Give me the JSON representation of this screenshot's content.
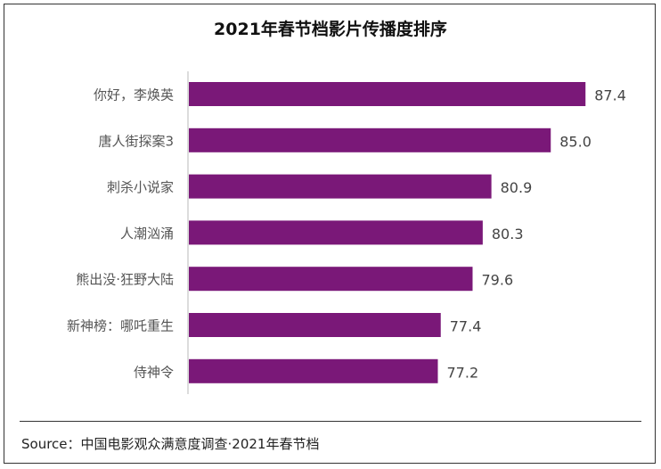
{
  "chart_data": {
    "type": "bar",
    "orientation": "horizontal",
    "title": "2021年春节档影片传播度排序",
    "categories": [
      "你好，李焕英",
      "唐人街探案3",
      "刺杀小说家",
      "人潮汹涌",
      "熊出没·狂野大陆",
      "新神榜：哪吒重生",
      "侍神令"
    ],
    "values": [
      87.4,
      85.0,
      80.9,
      80.3,
      79.6,
      77.4,
      77.2
    ],
    "value_labels": [
      "87.4",
      "85.0",
      "80.9",
      "80.3",
      "79.6",
      "77.4",
      "77.2"
    ],
    "xlim": [
      60,
      90
    ],
    "grid": false,
    "bar_color": "#7A1878"
  },
  "source": "Source：中国电影观众满意度调查·2021年春节档"
}
